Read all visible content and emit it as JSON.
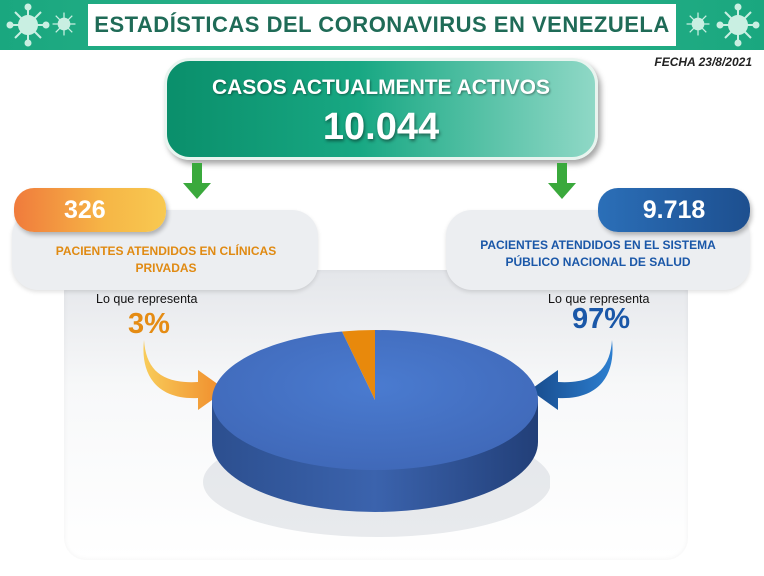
{
  "header": {
    "title": "ESTADÍSTICAS DEL CORONAVIRUS EN VENEZUELA",
    "date": "FECHA 23/8/2021"
  },
  "active": {
    "label": "CASOS ACTUALMENTE ACTIVOS",
    "value": "10.044"
  },
  "left_card": {
    "value": "326",
    "line1": "PACIENTES ATENDIDOS EN CLÍNICAS",
    "line2": "PRIVADAS",
    "represents": "Lo que representa",
    "percent": "3%"
  },
  "right_card": {
    "value": "9.718",
    "line1": "PACIENTES ATENDIDOS EN EL SISTEMA",
    "line2": "PÚBLICO NACIONAL DE SALUD",
    "represents": "Lo que representa",
    "percent": "97%"
  },
  "colors": {
    "header_green": "#1aa77f",
    "private_orange": "#f28a1e",
    "public_blue": "#4472c4"
  },
  "chart_data": {
    "type": "pie",
    "title": "",
    "slices": [
      {
        "label": "PACIENTES ATENDIDOS EN CLÍNICAS PRIVADAS",
        "value": 326,
        "percent": 3,
        "color": "#e8890c"
      },
      {
        "label": "PACIENTES ATENDIDOS EN EL SISTEMA PÚBLICO NACIONAL DE SALUD",
        "value": 9718,
        "percent": 97,
        "color": "#4472c4"
      }
    ]
  }
}
